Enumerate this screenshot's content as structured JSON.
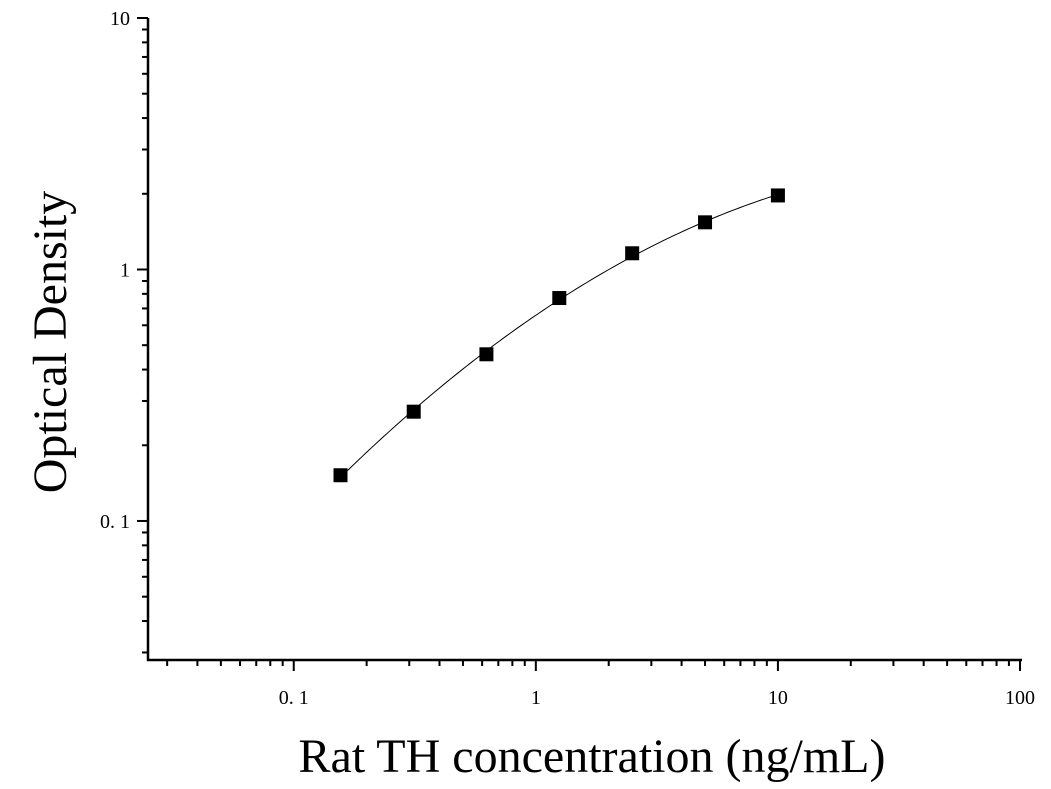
{
  "chart_data": {
    "type": "scatter",
    "xlabel": "Rat TH concentration (ng/mL)",
    "ylabel": "Optical Density",
    "x_scale": "log",
    "y_scale": "log",
    "xlim": [
      0.025,
      100
    ],
    "ylim": [
      0.028,
      10
    ],
    "x_major_ticks": [
      0.1,
      1,
      10,
      100
    ],
    "x_tick_labels": [
      "0. 1",
      "1",
      "10",
      "100"
    ],
    "y_major_ticks": [
      0.1,
      1,
      10
    ],
    "y_tick_labels": [
      "0. 1",
      "1",
      "10"
    ],
    "grid": false,
    "marker": "square",
    "color": "#000000",
    "series": [
      {
        "x": [
          0.156,
          0.313,
          0.625,
          1.25,
          2.5,
          5,
          10
        ],
        "y": [
          0.152,
          0.272,
          0.46,
          0.77,
          1.16,
          1.54,
          1.97
        ],
        "fit_curve": true
      }
    ]
  }
}
